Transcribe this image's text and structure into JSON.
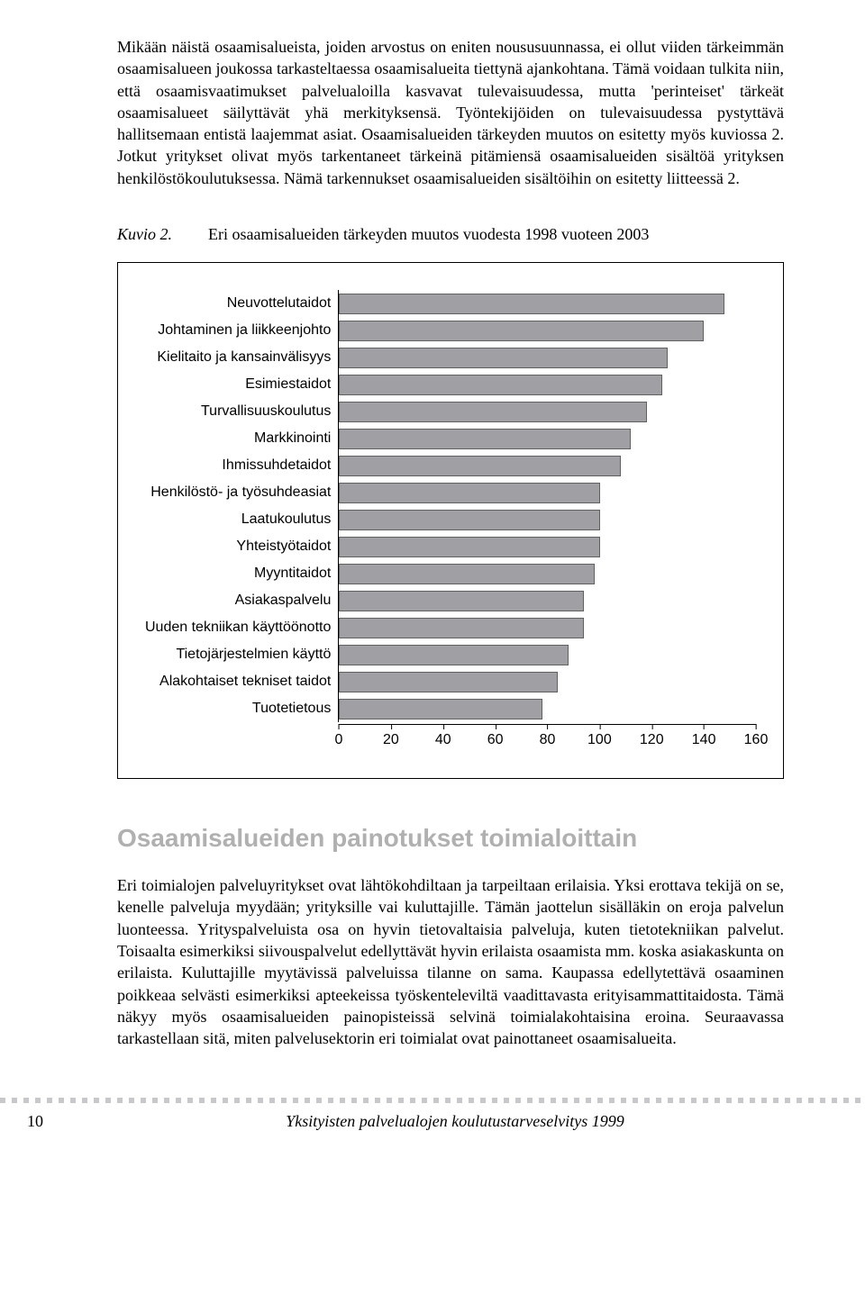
{
  "paragraphs": {
    "p1": "Mikään näistä osaamisalueista, joiden arvostus on eniten noususuunnassa, ei ollut viiden tärkeimmän osaamisalueen joukossa tarkasteltaessa osaamisalueita tiettynä ajankohtana. Tämä voidaan tulkita niin, että osaamisvaatimukset palvelualoilla kasvavat tulevaisuudessa, mutta 'perinteiset' tärkeät osaamisalueet säilyttävät yhä merkityksensä. Työntekijöiden on tulevaisuudessa pystyttävä hallitsemaan entistä laajemmat asiat. Osaamisalueiden tärkeyden muutos on esitetty myös kuviossa 2. Jotkut yritykset olivat myös tarkentaneet tärkeinä pitämiensä osaamisalueiden sisältöä yrityksen henkilöstökoulutuksessa. Nämä tarkennukset osaamisalueiden sisältöihin on esitetty liitteessä 2."
  },
  "figure": {
    "label": "Kuvio 2.",
    "caption": "Eri osaamisalueiden tärkeyden muutos vuodesta 1998 vuoteen 2003"
  },
  "chart": {
    "type": "bar",
    "orientation": "horizontal",
    "xmin": 0,
    "xmax": 160,
    "xtick_step": 20,
    "ticks": [
      0,
      20,
      40,
      60,
      80,
      100,
      120,
      140,
      160
    ],
    "bar_color": "#a0a0a4",
    "bar_border_color": "#606060",
    "label_fontsize": 16,
    "label_fontfamily": "Arial",
    "categories": [
      "Neuvottelutaidot",
      "Johtaminen ja liikkeenjohto",
      "Kielitaito ja kansainvälisyys",
      "Esimiestaidot",
      "Turvallisuuskoulutus",
      "Markkinointi",
      "Ihmissuhdetaidot",
      "Henkilöstö- ja työsuhdeasiat",
      "Laatukoulutus",
      "Yhteistyötaidot",
      "Myyntitaidot",
      "Asiakaspalvelu",
      "Uuden tekniikan käyttöönotto",
      "Tietojärjestelmien käyttö",
      "Alakohtaiset tekniset taidot",
      "Tuotetietous"
    ],
    "values": [
      148,
      140,
      126,
      124,
      118,
      112,
      108,
      100,
      100,
      100,
      98,
      94,
      94,
      88,
      84,
      78
    ]
  },
  "section": {
    "heading": "Osaamisalueiden painotukset toimialoittain",
    "body": "Eri toimialojen palveluyritykset ovat lähtökohdiltaan ja tarpeiltaan erilaisia. Yksi erottava tekijä on se, kenelle palveluja myydään; yrityksille vai kuluttajille. Tämän jaottelun sisälläkin on eroja palvelun luonteessa. Yrityspalveluista osa on hyvin tietovaltaisia palveluja, kuten tietotekniikan palvelut. Toisaalta esimerkiksi siivouspalvelut edellyttävät hyvin erilaista osaamista mm. koska asiakaskunta on erilaista. Kuluttajille myytävissä palveluissa tilanne on sama. Kaupassa edellytettävä osaaminen poikkeaa selvästi esimerkiksi apteekeissa työskenteleviltä vaadittavasta erityisammattitaidosta. Tämä näkyy myös osaamisalueiden painopisteissä selvinä toimialakohtaisina eroina. Seuraavassa tarkastellaan sitä, miten palvelusektorin eri toimialat ovat painottaneet osaamisalueita."
  },
  "footer": {
    "page_number": "10",
    "doc_title": "Yksityisten palvelualojen koulutustarveselvitys 1999"
  }
}
